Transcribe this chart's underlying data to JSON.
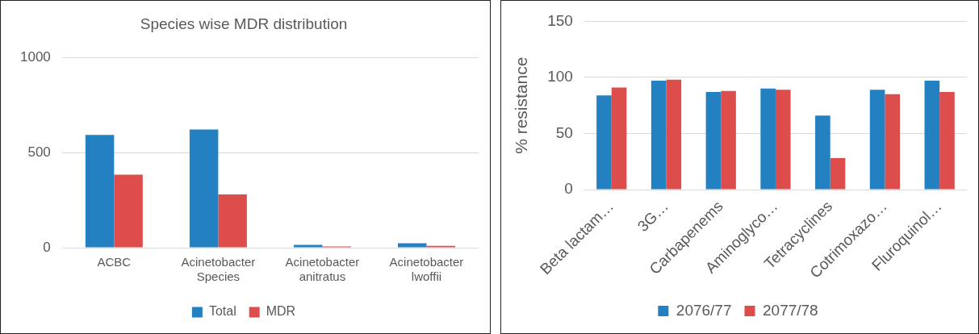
{
  "chart_data": [
    {
      "type": "bar",
      "title": "Species wise MDR distribution",
      "categories": [
        [
          "ACBC"
        ],
        [
          "Acinetobacter",
          "Species"
        ],
        [
          "Acinetobacter",
          "anitratus"
        ],
        [
          "Acinetobacter",
          "lwoffii"
        ]
      ],
      "series": [
        {
          "name": "Total",
          "color": "#2481c1",
          "values": [
            594,
            623,
            15,
            23
          ]
        },
        {
          "name": "MDR",
          "color": "#dd4d4b",
          "values": [
            385,
            281,
            6,
            10
          ]
        }
      ],
      "ylim": [
        0,
        1000
      ],
      "yticks": [
        0,
        500,
        1000
      ],
      "grid": "y",
      "legend": "bottom"
    },
    {
      "type": "bar",
      "ylabel": "% resistance",
      "categories": [
        "Beta lactam…",
        "3G…",
        "Carbapenems",
        "Aminoglyco…",
        "Tetracyclines",
        "Cotrimoxazo…",
        "Fluroquinol…"
      ],
      "series": [
        {
          "name": "2076/77",
          "color": "#2481c1",
          "values": [
            84,
            97,
            87,
            90,
            66,
            89,
            97
          ]
        },
        {
          "name": "2077/78",
          "color": "#dd4d4b",
          "values": [
            91,
            98,
            88,
            89,
            28,
            85,
            87
          ]
        }
      ],
      "ylim": [
        0,
        150
      ],
      "yticks": [
        0,
        50,
        100,
        150
      ],
      "grid": "y",
      "legend": "bottom"
    }
  ]
}
